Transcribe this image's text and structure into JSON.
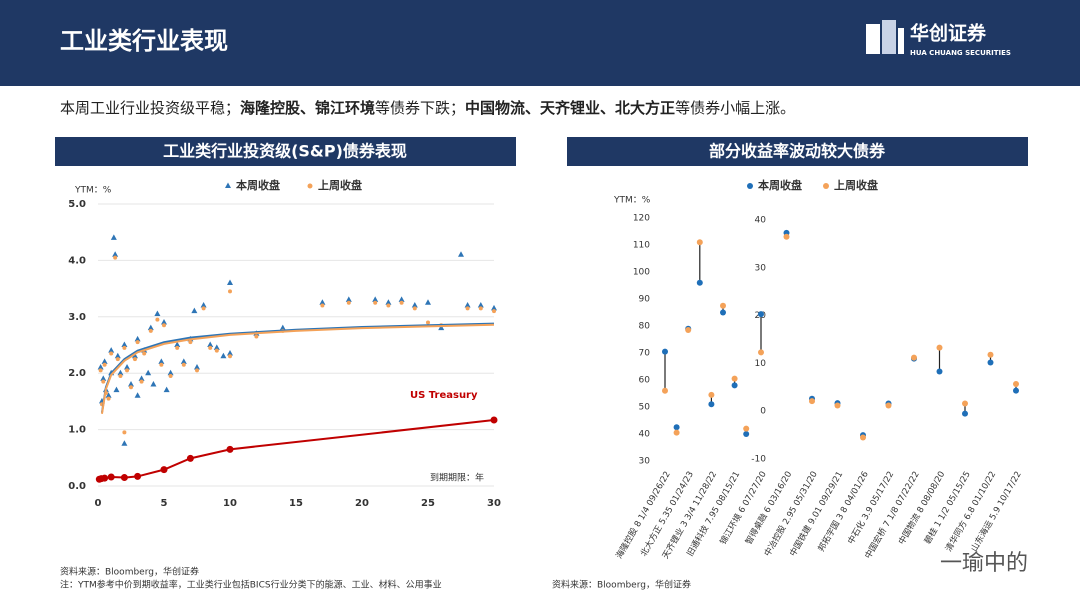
{
  "header": {
    "title": "工业类行业表现",
    "logo": {
      "name": "华创证券",
      "en": "HUA CHUANG SECURITIES"
    }
  },
  "summary": [
    {
      "text": "本周工业行业投资级平稳；",
      "bold": false
    },
    {
      "text": "海隆控股、锦江环境",
      "bold": true
    },
    {
      "text": "等债券下跌；",
      "bold": false
    },
    {
      "text": "中国物流、天齐锂业、北大方正",
      "bold": true
    },
    {
      "text": "等债券小幅上涨。",
      "bold": false
    }
  ],
  "chart_data": [
    {
      "type": "scatter",
      "title": "工业类行业投资级(S&P)债券表现",
      "ylabel": "YTM：%",
      "xlabel": "到期期限：年",
      "grid": true,
      "xlim": [
        0,
        30
      ],
      "ylim": [
        0,
        5
      ],
      "xticks": [
        0,
        5,
        10,
        15,
        20,
        25,
        30
      ],
      "yticks": [
        {
          "value": 0,
          "label": "0.0"
        },
        {
          "value": 1,
          "label": "1.0"
        },
        {
          "value": 2,
          "label": "2.0"
        },
        {
          "value": 3,
          "label": "3.0"
        },
        {
          "value": 4,
          "label": "4.0"
        },
        {
          "value": 5,
          "label": "5.0"
        }
      ],
      "series": [
        {
          "name": "本周收盘",
          "color": "#2e75b6",
          "marker": "triangle",
          "x": [
            0.2,
            0.3,
            0.4,
            0.5,
            0.6,
            0.8,
            1,
            1,
            1.2,
            1.3,
            1.4,
            1.5,
            1.7,
            2,
            2,
            2.2,
            2.5,
            2.8,
            3,
            3,
            3.3,
            3.5,
            3.8,
            4,
            4.2,
            4.5,
            4.8,
            5,
            5.2,
            5.5,
            6,
            6.5,
            7,
            7.3,
            7.5,
            8,
            8.5,
            9,
            9.5,
            10,
            10,
            12,
            14,
            17,
            19,
            21,
            22,
            23,
            24,
            25,
            26,
            27.5,
            28,
            29,
            30
          ],
          "values": [
            2.1,
            1.5,
            1.9,
            2.2,
            1.7,
            1.6,
            2.4,
            2.0,
            4.4,
            4.1,
            1.7,
            2.3,
            2.0,
            2.5,
            0.75,
            2.1,
            1.8,
            2.3,
            2.6,
            1.6,
            1.9,
            2.4,
            2.0,
            2.8,
            1.8,
            3.05,
            2.2,
            2.9,
            1.7,
            2.0,
            2.5,
            2.2,
            2.6,
            3.1,
            2.1,
            3.2,
            2.5,
            2.45,
            2.3,
            3.6,
            2.35,
            2.7,
            2.8,
            3.25,
            3.3,
            3.3,
            3.25,
            3.3,
            3.2,
            3.25,
            2.8,
            4.1,
            3.2,
            3.2,
            3.15
          ]
        },
        {
          "name": "上周收盘",
          "color": "#f4a259",
          "marker": "dot",
          "x": [
            0.2,
            0.3,
            0.4,
            0.5,
            0.6,
            0.8,
            1,
            1.3,
            1.5,
            1.7,
            2,
            2,
            2.2,
            2.5,
            2.8,
            3,
            3.3,
            3.5,
            4,
            4.5,
            4.8,
            5,
            5.5,
            6,
            6.5,
            7,
            7.5,
            8,
            8.5,
            9,
            10,
            10,
            12,
            14,
            17,
            19,
            21,
            22,
            23,
            24,
            25,
            26,
            28,
            29,
            30
          ],
          "values": [
            2.05,
            1.45,
            1.85,
            2.15,
            1.65,
            1.55,
            2.35,
            4.05,
            2.25,
            1.95,
            2.45,
            0.95,
            2.05,
            1.75,
            2.25,
            2.55,
            1.85,
            2.35,
            2.75,
            2.95,
            2.15,
            2.85,
            1.95,
            2.45,
            2.15,
            2.55,
            2.05,
            3.15,
            2.45,
            2.4,
            3.45,
            2.3,
            2.65,
            2.75,
            3.2,
            3.25,
            3.25,
            3.2,
            3.25,
            3.15,
            2.9,
            2.85,
            3.15,
            3.15,
            3.1
          ]
        }
      ],
      "trend": [
        {
          "color": "#2e75b6",
          "x": [
            0.3,
            0.6,
            1,
            2,
            3,
            5,
            7,
            10,
            15,
            20,
            25,
            30
          ],
          "values": [
            1.3,
            1.75,
            2.0,
            2.25,
            2.4,
            2.55,
            2.63,
            2.7,
            2.77,
            2.82,
            2.85,
            2.88
          ]
        },
        {
          "color": "#f4a259",
          "x": [
            0.3,
            0.6,
            1,
            2,
            3,
            5,
            7,
            10,
            15,
            20,
            25,
            30
          ],
          "values": [
            1.28,
            1.72,
            1.97,
            2.22,
            2.37,
            2.52,
            2.6,
            2.68,
            2.75,
            2.8,
            2.83,
            2.86
          ]
        }
      ],
      "treasury": {
        "name": "US Treasury",
        "color": "#c00000",
        "x": [
          0.1,
          0.25,
          0.5,
          1,
          2,
          3,
          5,
          7,
          10,
          30
        ],
        "values": [
          0.12,
          0.13,
          0.14,
          0.16,
          0.15,
          0.17,
          0.29,
          0.49,
          0.65,
          1.17
        ]
      }
    },
    {
      "type": "dumbbell",
      "title": "部分收益率波动较大债券",
      "ylabel": "YTM：%",
      "categories": [
        "海隆控股 8 1/4 09/26/22",
        null,
        "北大方正 5.35 01/24/23",
        null,
        "天齐锂业 3 3/4 11/28/22",
        null,
        "旧通科技 7.95 08/15/21",
        null
      ],
      "categories2": [
        "锦江环境 6 07/27/20",
        "智得桌融 6 03/16/20",
        "中冶控股 2.95 05/31/20",
        "中国铁建 9.01 09/29/21",
        "邦拓宇国 3 8 04/01/26",
        "中石化 3.9 05/17/22",
        "中国宏桥 7 1/8 07/22/22",
        "中国物流 8 08/08/20",
        "碧桂 1 1/2 05/15/25",
        "清华同方 6.8 01/10/22",
        "山东海运 5.9 10/17/22"
      ],
      "ylim": [
        30,
        120
      ],
      "yticks": [
        30,
        40,
        50,
        60,
        70,
        80,
        90,
        100,
        110,
        120
      ],
      "y2lim": [
        -10,
        40
      ],
      "y2ticks": [
        -10,
        0,
        10,
        20,
        30,
        40
      ],
      "series": [
        {
          "name": "本周收盘",
          "color": "#1f6fb8",
          "values": [
            70.5,
            42.5,
            79,
            96,
            51,
            85,
            58,
            40
          ],
          "values2": [
            20.3,
            37.3,
            2.6,
            1.7,
            -5,
            1.6,
            11,
            8.3,
            -0.5,
            10.2,
            4.3
          ]
        },
        {
          "name": "上周收盘",
          "color": "#f4a259",
          "values": [
            56,
            40.5,
            78.5,
            111,
            54.5,
            87.5,
            60.5,
            42
          ],
          "values2": [
            12.3,
            36.5,
            2.1,
            1.2,
            -5.5,
            1.2,
            11.2,
            13.3,
            1.6,
            11.8,
            5.7
          ]
        }
      ]
    }
  ],
  "footer": {
    "left": [
      "资料来源：Bloomberg，华创证券",
      "注：YTM参考中价到期收益率，工业类行业包括BICS行业分类下的能源、工业、材料、公用事业"
    ],
    "right": "资料来源：Bloomberg，华创证券"
  },
  "watermark": "一瑜中的"
}
